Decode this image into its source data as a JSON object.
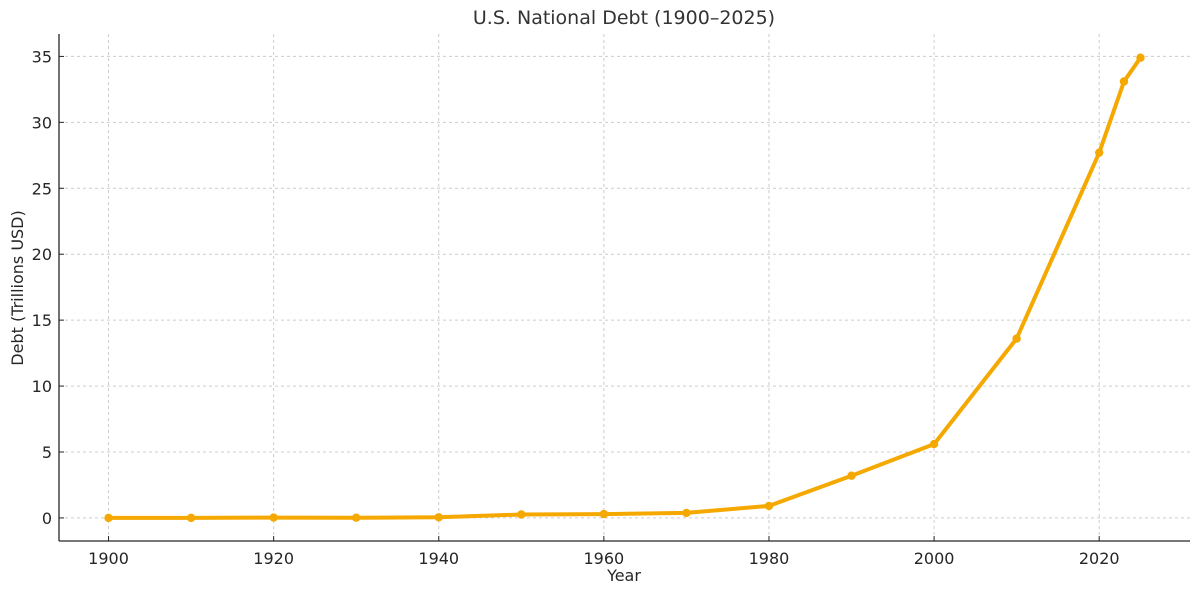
{
  "chart_data": {
    "type": "line",
    "title": "U.S. National Debt (1900–2025)",
    "xlabel": "Year",
    "ylabel": "Debt (Trillions USD)",
    "x": [
      1900,
      1910,
      1920,
      1930,
      1940,
      1950,
      1960,
      1970,
      1980,
      1990,
      2000,
      2010,
      2020,
      2023,
      2025
    ],
    "series": [
      {
        "name": "U.S. National Debt",
        "color": "#F5A800",
        "values": [
          0.002,
          0.003,
          0.026,
          0.016,
          0.05,
          0.26,
          0.29,
          0.38,
          0.91,
          3.2,
          5.6,
          13.6,
          27.7,
          33.1,
          34.9
        ]
      }
    ],
    "xlim": [
      1894,
      2031
    ],
    "ylim": [
      -1.75,
      36.7
    ],
    "xticks": [
      1900,
      1920,
      1940,
      1960,
      1980,
      2000,
      2020
    ],
    "yticks": [
      0,
      5,
      10,
      15,
      20,
      25,
      30,
      35
    ],
    "grid": true,
    "legend": null
  }
}
